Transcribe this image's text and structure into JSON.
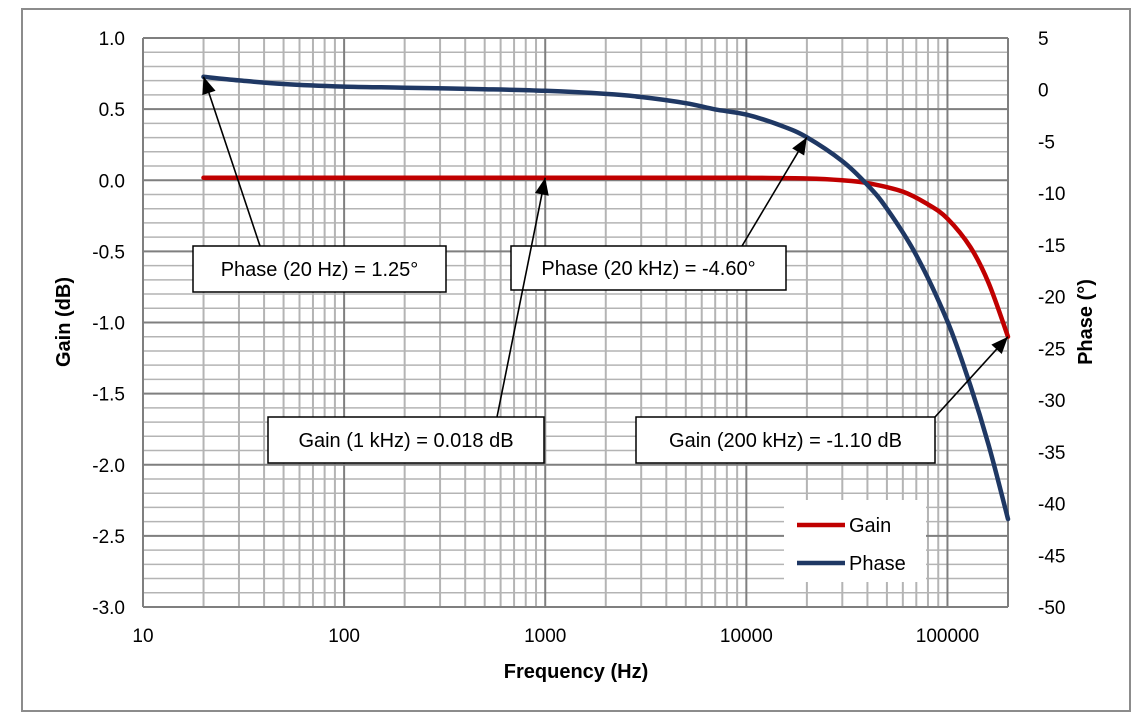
{
  "chart_data": {
    "type": "line",
    "xlabel": "Frequency (Hz)",
    "ylabel": "Gain (dB)",
    "y2label": "Phase (°)",
    "x_scale": "log",
    "xlim": [
      10,
      200000
    ],
    "ylim": [
      -3.0,
      1.0
    ],
    "y2lim": [
      -50,
      5
    ],
    "grid": true,
    "legend_position": "bottom-right",
    "x_ticks": [
      {
        "value": 10,
        "label": "10"
      },
      {
        "value": 100,
        "label": "100"
      },
      {
        "value": 1000,
        "label": "1000"
      },
      {
        "value": 10000,
        "label": "10000"
      },
      {
        "value": 100000,
        "label": "100000"
      }
    ],
    "y_ticks": [
      {
        "value": 1.0,
        "label": "1.0"
      },
      {
        "value": 0.5,
        "label": "0.5"
      },
      {
        "value": 0.0,
        "label": "0.0"
      },
      {
        "value": -0.5,
        "label": "-0.5"
      },
      {
        "value": -1.0,
        "label": "-1.0"
      },
      {
        "value": -1.5,
        "label": "-1.5"
      },
      {
        "value": -2.0,
        "label": "-2.0"
      },
      {
        "value": -2.5,
        "label": "-2.5"
      },
      {
        "value": -3.0,
        "label": "-3.0"
      }
    ],
    "y2_ticks": [
      {
        "value": 5,
        "label": "5"
      },
      {
        "value": 0,
        "label": "0"
      },
      {
        "value": -5,
        "label": "-5"
      },
      {
        "value": -10,
        "label": "-10"
      },
      {
        "value": -15,
        "label": "-15"
      },
      {
        "value": -20,
        "label": "-20"
      },
      {
        "value": -25,
        "label": "-25"
      },
      {
        "value": -30,
        "label": "-30"
      },
      {
        "value": -35,
        "label": "-35"
      },
      {
        "value": -40,
        "label": "-40"
      },
      {
        "value": -45,
        "label": "-45"
      },
      {
        "value": -50,
        "label": "-50"
      }
    ],
    "series": [
      {
        "name": "Gain",
        "axis": "left",
        "color": "#c00000",
        "x": [
          20,
          50,
          100,
          300,
          1000,
          3000,
          10000,
          20000,
          30000,
          40000,
          60000,
          80000,
          100000,
          130000,
          160000,
          200000
        ],
        "y": [
          0.018,
          0.018,
          0.018,
          0.018,
          0.018,
          0.018,
          0.017,
          0.012,
          0.0,
          -0.02,
          -0.08,
          -0.17,
          -0.27,
          -0.47,
          -0.72,
          -1.1
        ]
      },
      {
        "name": "Phase",
        "axis": "right",
        "color": "#1f3864",
        "x": [
          20,
          30,
          50,
          100,
          200,
          500,
          1000,
          2000,
          3000,
          5000,
          7000,
          10000,
          15000,
          20000,
          30000,
          40000,
          50000,
          70000,
          100000,
          130000,
          160000,
          200000
        ],
        "y": [
          1.25,
          0.9,
          0.55,
          0.3,
          0.2,
          0.05,
          -0.1,
          -0.4,
          -0.7,
          -1.3,
          -1.9,
          -2.4,
          -3.5,
          -4.6,
          -6.9,
          -9.2,
          -11.5,
          -16.0,
          -22.4,
          -28.6,
          -34.3,
          -41.5
        ]
      }
    ],
    "annotations": [
      {
        "text": "Phase (20 Hz) = 1.25°",
        "target": {
          "x": 20,
          "y": 1.25,
          "axis": "right"
        }
      },
      {
        "text": "Phase (20 kHz) = -4.60°",
        "target": {
          "x": 20000,
          "y": -4.6,
          "axis": "right"
        }
      },
      {
        "text": "Gain (1 kHz) = 0.018 dB",
        "target": {
          "x": 1000,
          "y": 0.018,
          "axis": "left"
        }
      },
      {
        "text": "Gain (200 kHz) = -1.10 dB",
        "target": {
          "x": 200000,
          "y": -1.1,
          "axis": "left"
        }
      }
    ]
  }
}
